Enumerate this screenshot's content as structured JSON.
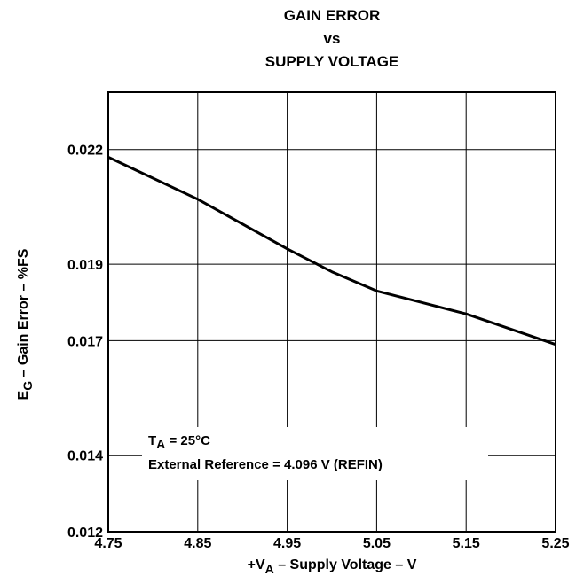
{
  "chart_data": {
    "type": "line",
    "title_lines": [
      "GAIN ERROR",
      "vs",
      "SUPPLY VOLTAGE"
    ],
    "xlabel": {
      "prefix": "+V",
      "sub": "A",
      "suffix": " – Supply Voltage – V"
    },
    "ylabel": {
      "prefix": "E",
      "sub": "G",
      "suffix": " – Gain Error – %FS"
    },
    "xlim": [
      4.75,
      5.25
    ],
    "ylim": [
      0.012,
      0.0235
    ],
    "x_ticks": [
      {
        "value": 4.75,
        "label": "4.75"
      },
      {
        "value": 4.85,
        "label": "4.85"
      },
      {
        "value": 4.95,
        "label": "4.95"
      },
      {
        "value": 5.05,
        "label": "5.05"
      },
      {
        "value": 5.15,
        "label": "5.15"
      },
      {
        "value": 5.25,
        "label": "5.25"
      }
    ],
    "y_ticks": [
      {
        "value": 0.012,
        "label": "0.012"
      },
      {
        "value": 0.014,
        "label": "0.014"
      },
      {
        "value": 0.017,
        "label": "0.017"
      },
      {
        "value": 0.019,
        "label": "0.019"
      },
      {
        "value": 0.022,
        "label": "0.022"
      }
    ],
    "grid": true,
    "series": [
      {
        "x": [
          4.75,
          4.85,
          4.95,
          5.0,
          5.05,
          5.1,
          5.15,
          5.2,
          5.25
        ],
        "y": [
          0.0218,
          0.0207,
          0.0194,
          0.0188,
          0.0183,
          0.018,
          0.0177,
          0.0173,
          0.0169
        ]
      }
    ],
    "annotation": {
      "line1": {
        "prefix": "T",
        "sub": "A",
        "suffix": " = 25°C"
      },
      "line2": "External Reference = 4.096 V (REFIN)"
    }
  }
}
